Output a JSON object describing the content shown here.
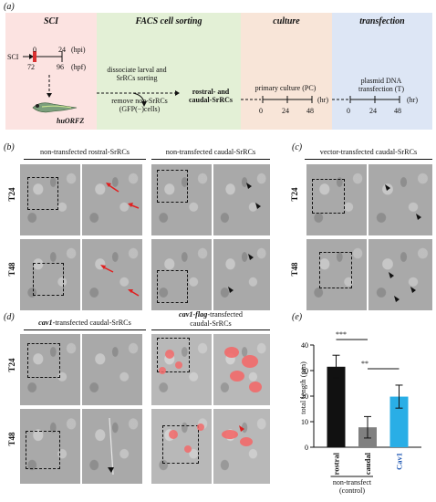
{
  "panel_a": {
    "label": "(a)",
    "sci": {
      "title": "SCI",
      "sci_arrow_label": "SCI",
      "hpi_ticks": [
        "0",
        "24"
      ],
      "hpi_unit": "(hpi)",
      "hpf_ticks": [
        "72",
        "96"
      ],
      "hpf_unit": "(hpf)",
      "fish_label": "huORFZ"
    },
    "facs": {
      "title": "FACS cell sorting",
      "text_1": "dissociate larval and SrRCs sorting",
      "text_2": "remove non-SrRCs (GFP(−)cells)",
      "result": "rostral- and caudal-SrRCs"
    },
    "culture": {
      "title": "culture",
      "text": "primary culture (PC)",
      "ticks": [
        "0",
        "24",
        "48"
      ],
      "unit": "(hr)"
    },
    "transfection": {
      "title": "transfection",
      "text": "plasmid DNA transfection (T)",
      "ticks": [
        "0",
        "24",
        "48"
      ],
      "unit": "(hr)"
    }
  },
  "panel_b": {
    "label": "(b)",
    "left_title": "non-transfected rostral-SrRCs",
    "right_title": "non-transfected caudal-SrRCs",
    "rows": [
      "T24",
      "T48"
    ]
  },
  "panel_c": {
    "label": "(c)",
    "title": "vector-transfected caudal-SrRCs",
    "rows": [
      "T24",
      "T48"
    ]
  },
  "panel_d": {
    "label": "(d)",
    "left_title_gene": "cav1",
    "left_title_rest": "-transfected caudal-SrRCs",
    "right_title_gene": "cav1-flag",
    "right_title_rest": "-transfected",
    "right_title_line2": "caudal-SrRCs",
    "rows": [
      "T24",
      "T48"
    ]
  },
  "panel_e": {
    "label": "(e)",
    "sig_top": "***",
    "sig_bottom": "**",
    "group_caption_1": "non-transfect",
    "group_caption_2": "(control)"
  },
  "colors": {
    "sci_bg": "#fce3e1",
    "facs_bg": "#e3f0d6",
    "culture_bg": "#f8e5d8",
    "transfection_bg": "#dde6f5",
    "bar_rostral": "#111111",
    "bar_caudal": "#808080",
    "bar_cav1": "#29aee6",
    "cav1_label": "#1f57b3",
    "red_arrow": "#e02020",
    "mcherry": "#f26a6a"
  },
  "chart_data": {
    "type": "bar",
    "categories": [
      "rostral",
      "caudal",
      "Cav1"
    ],
    "values": [
      31.5,
      7.8,
      19.8
    ],
    "errors": [
      4.5,
      4.2,
      4.5
    ],
    "ylabel": "total length (µm)",
    "ylim": [
      0,
      40
    ],
    "yticks": [
      "0",
      "10",
      "20",
      "30",
      "40"
    ],
    "grid": false
  }
}
